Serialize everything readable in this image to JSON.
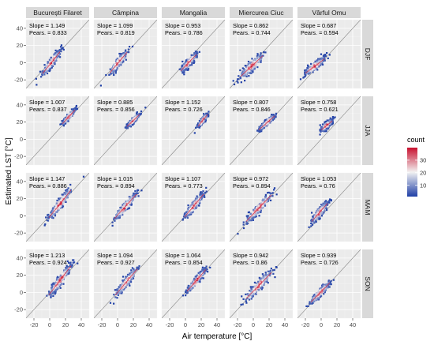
{
  "chart_data": {
    "type": "scatter",
    "subtype": "hexbin-density-facet-grid",
    "xlabel": "Air temperature [°C]",
    "ylabel": "Estimated LST [°C]",
    "columns": [
      "București Filaret",
      "Câmpina",
      "Mangalia",
      "Miercurea Ciuc",
      "Vârful Omu"
    ],
    "rows": [
      "DJF",
      "JJA",
      "MAM",
      "SON"
    ],
    "xlim": [
      -30,
      50
    ],
    "ylim": [
      -30,
      50
    ],
    "xticks": [
      -20,
      0,
      20,
      40
    ],
    "yticks": [
      -20,
      0,
      20,
      40
    ],
    "xtick_labels": [
      "-20",
      "0",
      "20",
      "40"
    ],
    "ytick_labels": [
      "-20",
      "0",
      "20",
      "40"
    ],
    "identity_line": true,
    "slope_label": "Slope",
    "pearson_label": "Pears.",
    "legend": {
      "title": "count",
      "position": "right",
      "ticks": [
        10,
        20,
        30
      ],
      "range": [
        1,
        40
      ],
      "low_color": "#1f3fa6",
      "mid_color": "#f2f2f2",
      "high_color": "#c8102e"
    },
    "panels": [
      {
        "row": "DJF",
        "column": "București Filaret",
        "slope": "1.149",
        "pearson": "0.833",
        "cx": 2,
        "cy": 0,
        "sx": 5.5,
        "sy": 8,
        "k": 1.15
      },
      {
        "row": "DJF",
        "column": "Câmpina",
        "slope": "1.099",
        "pearson": "0.819",
        "cx": 1,
        "cy": 0,
        "sx": 5.5,
        "sy": 8,
        "k": 1.1
      },
      {
        "row": "DJF",
        "column": "Mangalia",
        "slope": "0.953",
        "pearson": "0.786",
        "cx": 4,
        "cy": 0,
        "sx": 5,
        "sy": 7,
        "k": 0.95
      },
      {
        "row": "DJF",
        "column": "Miercurea Ciuc",
        "slope": "0.862",
        "pearson": "0.744",
        "cx": -2,
        "cy": -4,
        "sx": 7,
        "sy": 9,
        "k": 0.86
      },
      {
        "row": "DJF",
        "column": "Vârful Omu",
        "slope": "0.687",
        "pearson": "0.594",
        "cx": -8,
        "cy": -4,
        "sx": 6,
        "sy": 7,
        "k": 0.69
      },
      {
        "row": "JJA",
        "column": "București Filaret",
        "slope": "1.007",
        "pearson": "0.837",
        "cx": 24,
        "cy": 26,
        "sx": 4,
        "sy": 5,
        "k": 1.0
      },
      {
        "row": "JJA",
        "column": "Câmpina",
        "slope": "0.885",
        "pearson": "0.856",
        "cx": 20,
        "cy": 22,
        "sx": 4,
        "sy": 4.5,
        "k": 0.89
      },
      {
        "row": "JJA",
        "column": "Mangalia",
        "slope": "1.152",
        "pearson": "0.726",
        "cx": 22,
        "cy": 22,
        "sx": 3,
        "sy": 5,
        "k": 1.15
      },
      {
        "row": "JJA",
        "column": "Miercurea Ciuc",
        "slope": "0.807",
        "pearson": "0.846",
        "cx": 17,
        "cy": 19,
        "sx": 5,
        "sy": 5,
        "k": 0.81
      },
      {
        "row": "JJA",
        "column": "Vârful Omu",
        "slope": "0.758",
        "pearson": "0.621",
        "cx": 7,
        "cy": 16,
        "sx": 3.5,
        "sy": 6,
        "k": 0.76
      },
      {
        "row": "MAM",
        "column": "București Filaret",
        "slope": "1.147",
        "pearson": "0.886",
        "cx": 13,
        "cy": 14,
        "sx": 7,
        "sy": 9,
        "k": 1.15
      },
      {
        "row": "MAM",
        "column": "Câmpina",
        "slope": "1.015",
        "pearson": "0.894",
        "cx": 10,
        "cy": 11,
        "sx": 7,
        "sy": 8,
        "k": 1.02
      },
      {
        "row": "MAM",
        "column": "Mangalia",
        "slope": "1.107",
        "pearson": "0.773",
        "cx": 11,
        "cy": 12,
        "sx": 6,
        "sy": 8,
        "k": 1.11
      },
      {
        "row": "MAM",
        "column": "Miercurea Ciuc",
        "slope": "0.972",
        "pearson": "0.894",
        "cx": 7,
        "cy": 9,
        "sx": 8,
        "sy": 8,
        "k": 0.97
      },
      {
        "row": "MAM",
        "column": "Vârful Omu",
        "slope": "1.053",
        "pearson": "0.76",
        "cx": -2,
        "cy": 4,
        "sx": 5,
        "sy": 8,
        "k": 1.05
      },
      {
        "row": "SON",
        "column": "București Filaret",
        "slope": "1.213",
        "pearson": "0.924",
        "cx": 13,
        "cy": 14,
        "sx": 7,
        "sy": 9,
        "k": 1.21
      },
      {
        "row": "SON",
        "column": "Câmpina",
        "slope": "1.094",
        "pearson": "0.927",
        "cx": 11,
        "cy": 12,
        "sx": 7,
        "sy": 8,
        "k": 1.09
      },
      {
        "row": "SON",
        "column": "Mangalia",
        "slope": "1.064",
        "pearson": "0.854",
        "cx": 14,
        "cy": 14,
        "sx": 6,
        "sy": 7,
        "k": 1.06
      },
      {
        "row": "SON",
        "column": "Miercurea Ciuc",
        "slope": "0.942",
        "pearson": "0.86",
        "cx": 7,
        "cy": 8,
        "sx": 8,
        "sy": 9,
        "k": 0.94
      },
      {
        "row": "SON",
        "column": "Vârful Omu",
        "slope": "0.939",
        "pearson": "0.726",
        "cx": -1,
        "cy": 0,
        "sx": 6,
        "sy": 7,
        "k": 0.94
      }
    ]
  }
}
